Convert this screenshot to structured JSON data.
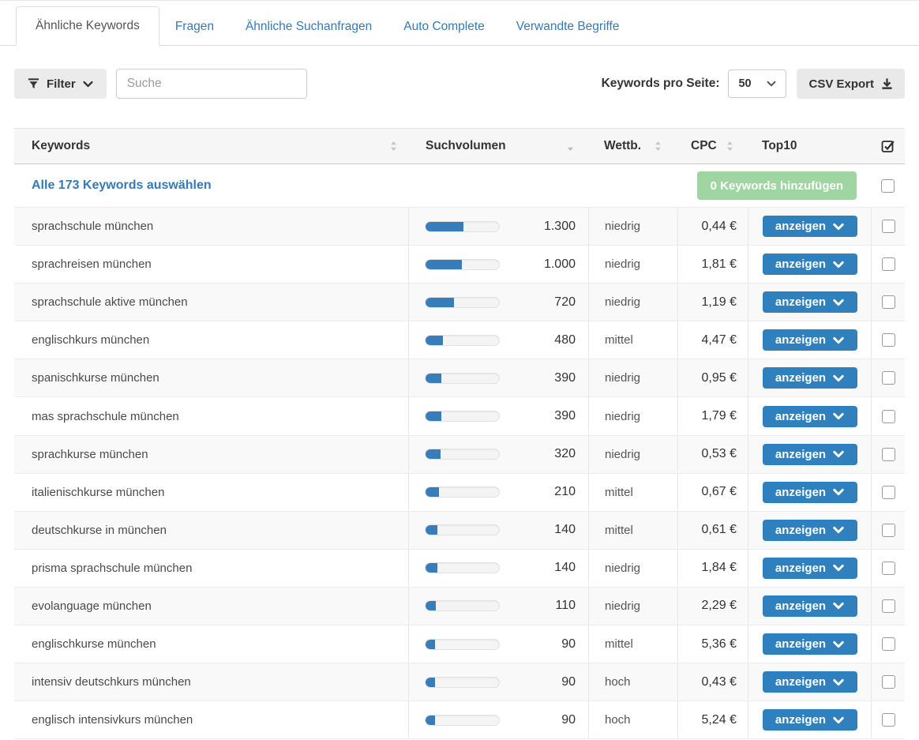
{
  "tabs": [
    {
      "label": "Ähnliche Keywords",
      "active": true
    },
    {
      "label": "Fragen",
      "active": false
    },
    {
      "label": "Ähnliche Suchanfragen",
      "active": false
    },
    {
      "label": "Auto Complete",
      "active": false
    },
    {
      "label": "Verwandte Begriffe",
      "active": false
    }
  ],
  "toolbar": {
    "filter_label": "Filter",
    "search_placeholder": "Suche",
    "per_page_label": "Keywords pro Seite:",
    "per_page_value": "50",
    "csv_label": "CSV Export"
  },
  "table": {
    "headers": {
      "keywords": "Keywords",
      "volume": "Suchvolumen",
      "competition": "Wettb.",
      "cpc": "CPC",
      "top10": "Top10"
    },
    "sort": {
      "column": "Suchvolumen",
      "direction": "desc"
    },
    "select_all_label": "Alle 173 Keywords auswählen",
    "add_button_label": "0 Keywords hinzufügen",
    "row_action_label": "anzeigen",
    "rows": [
      {
        "keyword": "sprachschule münchen",
        "volume": "1.300",
        "bar_pct": 52,
        "competition": "niedrig",
        "cpc": "0,44 €"
      },
      {
        "keyword": "sprachreisen münchen",
        "volume": "1.000",
        "bar_pct": 49,
        "competition": "niedrig",
        "cpc": "1,81 €"
      },
      {
        "keyword": "sprachschule aktive münchen",
        "volume": "720",
        "bar_pct": 39,
        "competition": "niedrig",
        "cpc": "1,19 €"
      },
      {
        "keyword": "englischkurs münchen",
        "volume": "480",
        "bar_pct": 24,
        "competition": "mittel",
        "cpc": "4,47 €"
      },
      {
        "keyword": "spanischkurse münchen",
        "volume": "390",
        "bar_pct": 21,
        "competition": "niedrig",
        "cpc": "0,95 €"
      },
      {
        "keyword": "mas sprachschule münchen",
        "volume": "390",
        "bar_pct": 21,
        "competition": "niedrig",
        "cpc": "1,79 €"
      },
      {
        "keyword": "sprachkurse münchen",
        "volume": "320",
        "bar_pct": 20,
        "competition": "niedrig",
        "cpc": "0,53 €"
      },
      {
        "keyword": "italienischkurse münchen",
        "volume": "210",
        "bar_pct": 18,
        "competition": "mittel",
        "cpc": "0,67 €"
      },
      {
        "keyword": "deutschkurse in münchen",
        "volume": "140",
        "bar_pct": 16,
        "competition": "mittel",
        "cpc": "0,61 €"
      },
      {
        "keyword": "prisma sprachschule münchen",
        "volume": "140",
        "bar_pct": 16,
        "competition": "niedrig",
        "cpc": "1,84 €"
      },
      {
        "keyword": "evolanguage münchen",
        "volume": "110",
        "bar_pct": 14,
        "competition": "niedrig",
        "cpc": "2,29 €"
      },
      {
        "keyword": "englischkurse münchen",
        "volume": "90",
        "bar_pct": 13,
        "competition": "mittel",
        "cpc": "5,36 €"
      },
      {
        "keyword": "intensiv deutschkurs münchen",
        "volume": "90",
        "bar_pct": 13,
        "competition": "hoch",
        "cpc": "0,43 €"
      },
      {
        "keyword": "englisch intensivkurs münchen",
        "volume": "90",
        "bar_pct": 13,
        "competition": "hoch",
        "cpc": "5,24 €"
      }
    ]
  },
  "colors": {
    "link_blue": "#337ab7",
    "button_blue": "#2f80bd",
    "bar_fill_blue": "#3a7cb8",
    "add_button_green": "#9fd5a1",
    "header_bg": "#f6f6f6",
    "row_alt_bg": "#f9f9f9"
  }
}
